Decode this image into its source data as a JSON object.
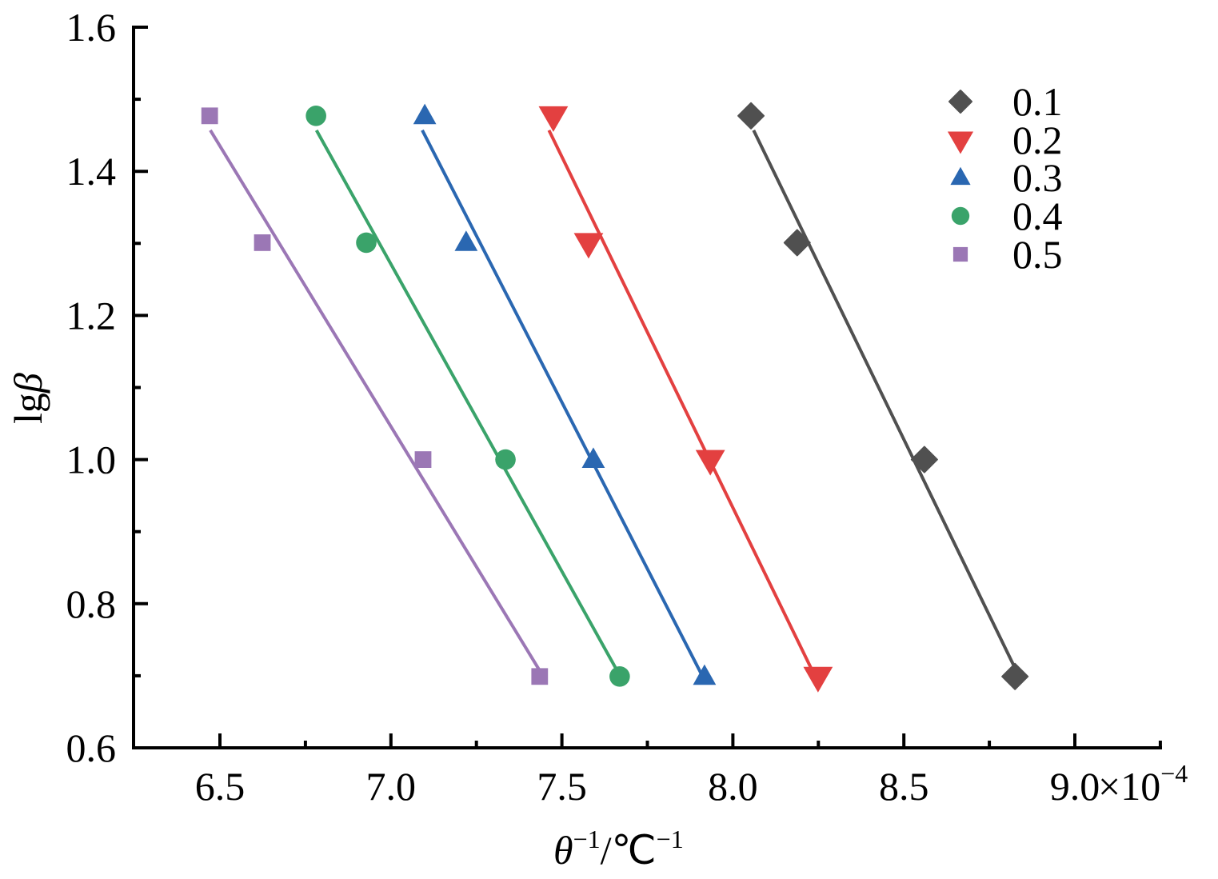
{
  "chart_data": {
    "type": "scatter",
    "title": "",
    "xlabel": {
      "theta": "θ",
      "sup1": "−1",
      "unit": "/℃",
      "sup2": "−1"
    },
    "ylabel": {
      "prefix": "lg",
      "beta": "β"
    },
    "x_multiplier": {
      "times": "×10",
      "exp": "−4"
    },
    "xlim": [
      6.25,
      9.25
    ],
    "ylim": [
      0.6,
      1.6
    ],
    "x_ticks": [
      6.5,
      7.0,
      7.5,
      8.0,
      8.5,
      9.0
    ],
    "x_tick_labels": [
      "6.5",
      "7.0",
      "7.5",
      "8.0",
      "8.5",
      "9.0"
    ],
    "x_minor_ticks": [
      6.75,
      7.25,
      7.75,
      8.25,
      8.75,
      9.25
    ],
    "y_ticks": [
      0.6,
      0.8,
      1.0,
      1.2,
      1.4,
      1.6
    ],
    "y_tick_labels": [
      "0.6",
      "0.8",
      "1.0",
      "1.2",
      "1.4",
      "1.6"
    ],
    "y_minor_ticks": [
      0.7,
      0.9,
      1.1,
      1.3,
      1.5
    ],
    "grid": false,
    "legend_position": "top-right",
    "fit_lines": true,
    "series": [
      {
        "name": "0.1",
        "marker": "diamond",
        "color": "#505050",
        "x": [
          8.053,
          8.188,
          8.56,
          8.825
        ],
        "y": [
          1.477,
          1.301,
          1.0,
          0.699
        ]
      },
      {
        "name": "0.2",
        "marker": "triangle-down",
        "color": "#e34040",
        "x": [
          7.475,
          7.578,
          7.934,
          8.249
        ],
        "y": [
          1.477,
          1.301,
          1.0,
          0.699
        ]
      },
      {
        "name": "0.3",
        "marker": "triangle-up",
        "color": "#2a67b1",
        "x": [
          7.099,
          7.22,
          7.592,
          7.917
        ],
        "y": [
          1.477,
          1.301,
          1.0,
          0.699
        ]
      },
      {
        "name": "0.4",
        "marker": "circle",
        "color": "#3aa36a",
        "x": [
          6.781,
          6.928,
          7.335,
          7.669
        ],
        "y": [
          1.477,
          1.301,
          1.0,
          0.699
        ]
      },
      {
        "name": "0.5",
        "marker": "square",
        "color": "#9b77b5",
        "x": [
          6.47,
          6.624,
          7.094,
          7.435
        ],
        "y": [
          1.477,
          1.301,
          1.0,
          0.699
        ]
      }
    ]
  }
}
